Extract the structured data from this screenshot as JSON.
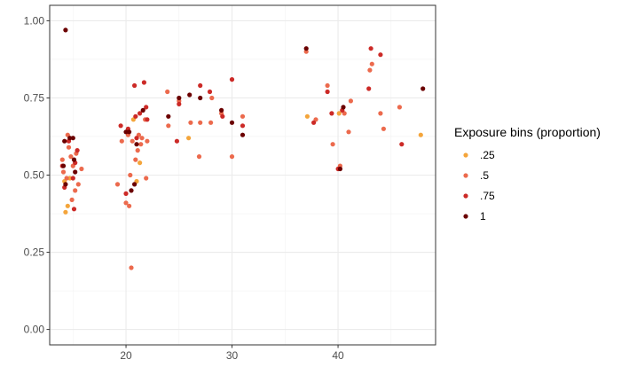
{
  "chart_data": {
    "type": "scatter",
    "title": "",
    "xlabel": "",
    "ylabel": "",
    "xlim": [
      12.8,
      49.2
    ],
    "ylim": [
      -0.05,
      1.05
    ],
    "x_ticks": [
      20,
      30,
      40
    ],
    "x_tick_labels": [
      "20",
      "30",
      "40"
    ],
    "y_ticks": [
      0.0,
      0.25,
      0.5,
      0.75,
      1.0
    ],
    "y_tick_labels": [
      "0.00",
      "0.25",
      "0.50",
      "0.75",
      "1.00"
    ],
    "grid": true,
    "legend": {
      "title": "Exposure bins (proportion)",
      "position": "right",
      "entries": [
        ".25",
        ".5",
        ".75",
        "1"
      ]
    },
    "colors": {
      ".25": "#f4a53b",
      ".5": "#ec6a4d",
      ".75": "#cc2a27",
      "1": "#6b0000"
    },
    "series": [
      {
        "name": ".25",
        "points": [
          [
            14.3,
            0.38
          ],
          [
            14.5,
            0.4
          ],
          [
            14.7,
            0.49
          ],
          [
            14.2,
            0.48
          ],
          [
            21.0,
            0.48
          ],
          [
            21.3,
            0.54
          ],
          [
            25.9,
            0.62
          ],
          [
            20.7,
            0.68
          ],
          [
            37.1,
            0.69
          ],
          [
            40.1,
            0.7
          ],
          [
            47.8,
            0.63
          ]
        ]
      },
      {
        "name": ".5",
        "points": [
          [
            14.0,
            0.55
          ],
          [
            14.1,
            0.51
          ],
          [
            14.4,
            0.49
          ],
          [
            14.6,
            0.59
          ],
          [
            14.5,
            0.63
          ],
          [
            14.8,
            0.56
          ],
          [
            15.0,
            0.53
          ],
          [
            15.2,
            0.45
          ],
          [
            15.3,
            0.57
          ],
          [
            15.5,
            0.47
          ],
          [
            15.8,
            0.52
          ],
          [
            14.9,
            0.42
          ],
          [
            19.2,
            0.47
          ],
          [
            19.6,
            0.61
          ],
          [
            20.0,
            0.41
          ],
          [
            20.3,
            0.4
          ],
          [
            20.5,
            0.2
          ],
          [
            20.4,
            0.5
          ],
          [
            20.9,
            0.55
          ],
          [
            21.1,
            0.58
          ],
          [
            21.2,
            0.63
          ],
          [
            21.4,
            0.6
          ],
          [
            21.5,
            0.62
          ],
          [
            21.8,
            0.68
          ],
          [
            21.9,
            0.49
          ],
          [
            20.2,
            0.63
          ],
          [
            20.6,
            0.61
          ],
          [
            22.0,
            0.61
          ],
          [
            23.9,
            0.77
          ],
          [
            24.0,
            0.66
          ],
          [
            25.0,
            0.74
          ],
          [
            26.1,
            0.67
          ],
          [
            26.9,
            0.56
          ],
          [
            27.0,
            0.67
          ],
          [
            28.0,
            0.67
          ],
          [
            28.1,
            0.75
          ],
          [
            29.0,
            0.7
          ],
          [
            30.0,
            0.56
          ],
          [
            31.0,
            0.69
          ],
          [
            37.0,
            0.9
          ],
          [
            37.9,
            0.68
          ],
          [
            39.0,
            0.79
          ],
          [
            39.5,
            0.6
          ],
          [
            40.2,
            0.53
          ],
          [
            40.6,
            0.7
          ],
          [
            41.0,
            0.64
          ],
          [
            41.2,
            0.74
          ],
          [
            43.0,
            0.84
          ],
          [
            43.2,
            0.86
          ],
          [
            44.0,
            0.7
          ],
          [
            44.3,
            0.65
          ],
          [
            45.8,
            0.72
          ]
        ]
      },
      {
        "name": ".75",
        "points": [
          [
            14.2,
            0.46
          ],
          [
            14.6,
            0.61
          ],
          [
            15.0,
            0.49
          ],
          [
            15.1,
            0.39
          ],
          [
            15.2,
            0.54
          ],
          [
            15.4,
            0.58
          ],
          [
            14.0,
            0.53
          ],
          [
            19.5,
            0.66
          ],
          [
            20.0,
            0.44
          ],
          [
            20.2,
            0.65
          ],
          [
            20.8,
            0.79
          ],
          [
            20.9,
            0.69
          ],
          [
            21.0,
            0.62
          ],
          [
            21.3,
            0.7
          ],
          [
            21.7,
            0.8
          ],
          [
            21.9,
            0.72
          ],
          [
            22.0,
            0.68
          ],
          [
            24.8,
            0.61
          ],
          [
            25.0,
            0.73
          ],
          [
            27.0,
            0.79
          ],
          [
            27.9,
            0.77
          ],
          [
            29.1,
            0.69
          ],
          [
            30.0,
            0.81
          ],
          [
            31.0,
            0.66
          ],
          [
            37.7,
            0.67
          ],
          [
            39.0,
            0.77
          ],
          [
            39.4,
            0.7
          ],
          [
            40.4,
            0.71
          ],
          [
            40.0,
            0.52
          ],
          [
            42.9,
            0.78
          ],
          [
            43.1,
            0.91
          ],
          [
            44.0,
            0.89
          ],
          [
            46.0,
            0.6
          ]
        ]
      },
      {
        "name": "1",
        "points": [
          [
            14.3,
            0.97
          ],
          [
            14.2,
            0.61
          ],
          [
            14.7,
            0.62
          ],
          [
            15.0,
            0.62
          ],
          [
            14.1,
            0.53
          ],
          [
            14.3,
            0.47
          ],
          [
            15.1,
            0.55
          ],
          [
            15.2,
            0.51
          ],
          [
            20.0,
            0.64
          ],
          [
            20.3,
            0.64
          ],
          [
            20.5,
            0.45
          ],
          [
            20.8,
            0.47
          ],
          [
            21.0,
            0.6
          ],
          [
            21.6,
            0.71
          ],
          [
            24.0,
            0.69
          ],
          [
            25.0,
            0.75
          ],
          [
            26.0,
            0.76
          ],
          [
            27.0,
            0.75
          ],
          [
            29.0,
            0.71
          ],
          [
            30.0,
            0.67
          ],
          [
            31.0,
            0.63
          ],
          [
            37.0,
            0.91
          ],
          [
            40.2,
            0.52
          ],
          [
            40.5,
            0.72
          ],
          [
            48.0,
            0.78
          ]
        ]
      }
    ]
  }
}
